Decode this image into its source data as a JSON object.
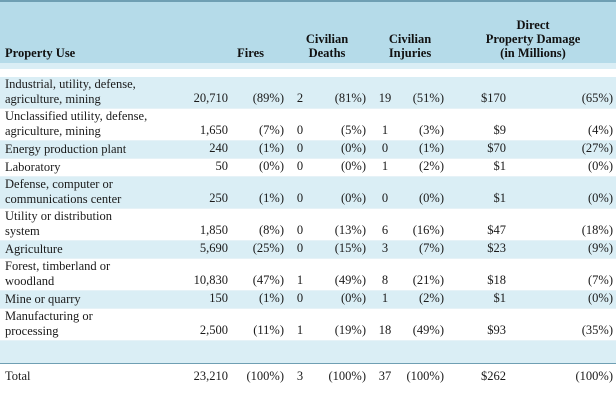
{
  "headers": {
    "property_use": "Property Use",
    "fires": "Fires",
    "civ_deaths": [
      "Civilian",
      "Deaths"
    ],
    "civ_injuries": [
      "Civilian",
      "Injuries"
    ],
    "damage": [
      "Direct",
      "Property Damage",
      "(in Millions)"
    ]
  },
  "rows": [
    {
      "label": [
        "Industrial, utility, defense,",
        "agriculture, mining"
      ],
      "fires": "20,710",
      "fires_pct": "(89%)",
      "deaths": "2",
      "deaths_pct": "(81%)",
      "injuries": "19",
      "injuries_pct": "(51%)",
      "damage": "$170",
      "damage_pct": "(65%)"
    },
    {
      "label": [
        "Unclassified utility, defense,",
        "agriculture, mining"
      ],
      "fires": "1,650",
      "fires_pct": "(7%)",
      "deaths": "0",
      "deaths_pct": "(5%)",
      "injuries": "1",
      "injuries_pct": "(3%)",
      "damage": "$9",
      "damage_pct": "(4%)"
    },
    {
      "label": [
        "Energy production plant"
      ],
      "fires": "240",
      "fires_pct": "(1%)",
      "deaths": "0",
      "deaths_pct": "(0%)",
      "injuries": "0",
      "injuries_pct": "(1%)",
      "damage": "$70",
      "damage_pct": "(27%)"
    },
    {
      "label": [
        "Laboratory"
      ],
      "fires": "50",
      "fires_pct": "(0%)",
      "deaths": "0",
      "deaths_pct": "(0%)",
      "injuries": "1",
      "injuries_pct": "(2%)",
      "damage": "$1",
      "damage_pct": "(0%)"
    },
    {
      "label": [
        "Defense, computer or",
        "communications center"
      ],
      "fires": "250",
      "fires_pct": "(1%)",
      "deaths": "0",
      "deaths_pct": "(0%)",
      "injuries": "0",
      "injuries_pct": "(0%)",
      "damage": "$1",
      "damage_pct": "(0%)"
    },
    {
      "label": [
        "Utility or distribution",
        "system"
      ],
      "fires": "1,850",
      "fires_pct": "(8%)",
      "deaths": "0",
      "deaths_pct": "(13%)",
      "injuries": "6",
      "injuries_pct": "(16%)",
      "damage": "$47",
      "damage_pct": "(18%)"
    },
    {
      "label": [
        "Agriculture"
      ],
      "fires": "5,690",
      "fires_pct": "(25%)",
      "deaths": "0",
      "deaths_pct": "(15%)",
      "injuries": "3",
      "injuries_pct": "(7%)",
      "damage": "$23",
      "damage_pct": "(9%)"
    },
    {
      "label": [
        "Forest, timberland or",
        "woodland"
      ],
      "fires": "10,830",
      "fires_pct": "(47%)",
      "deaths": "1",
      "deaths_pct": "(49%)",
      "injuries": "8",
      "injuries_pct": "(21%)",
      "damage": "$18",
      "damage_pct": "(7%)"
    },
    {
      "label": [
        "Mine or quarry"
      ],
      "fires": "150",
      "fires_pct": "(1%)",
      "deaths": "0",
      "deaths_pct": "(0%)",
      "injuries": "1",
      "injuries_pct": "(2%)",
      "damage": "$1",
      "damage_pct": "(0%)"
    },
    {
      "label": [
        "Manufacturing or",
        "processing"
      ],
      "fires": "2,500",
      "fires_pct": "(11%)",
      "deaths": "1",
      "deaths_pct": "(19%)",
      "injuries": "18",
      "injuries_pct": "(49%)",
      "damage": "$93",
      "damage_pct": "(35%)"
    }
  ],
  "total": {
    "label": "Total",
    "fires": "23,210",
    "fires_pct": "(100%)",
    "deaths": "3",
    "deaths_pct": "(100%)",
    "injuries": "37",
    "injuries_pct": "(100%)",
    "damage": "$262",
    "damage_pct": "(100%)"
  },
  "colors": {
    "header_bg": "#b5dbe9",
    "band_bg": "#daeef5",
    "rule": "#6f9fb3"
  }
}
